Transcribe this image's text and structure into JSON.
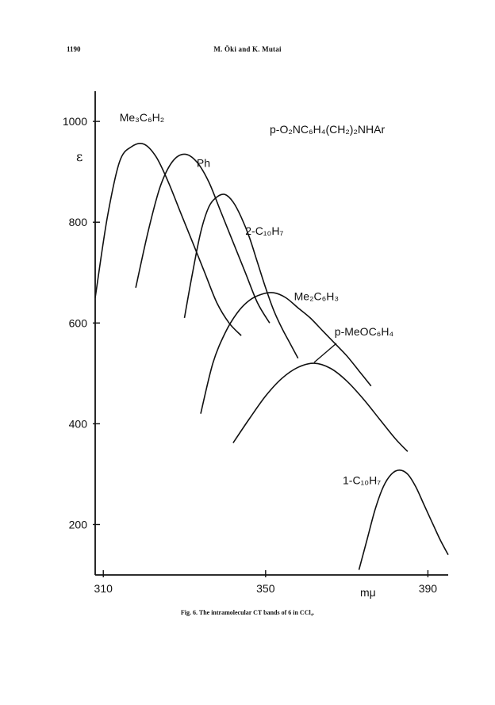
{
  "header": {
    "page_number": "1190",
    "authors": "M. Ōki and K. Mutai"
  },
  "caption": "Fig. 6. The intramolecular CT bands of 6 in CCl₄.",
  "chart_data": {
    "type": "line",
    "title": "p-O₂NC₆H₄(CH₂)₂NHAr",
    "xlabel": "mμ",
    "ylabel": "ε",
    "xlim": [
      308,
      395
    ],
    "ylim": [
      100,
      1060
    ],
    "xticks": [
      310,
      350,
      390
    ],
    "yticks": [
      200,
      400,
      600,
      800,
      1000
    ],
    "grid": false,
    "series": [
      {
        "name": "Me₃C₆H₂",
        "x": [
          308,
          311,
          314,
          317,
          320,
          323,
          326,
          329,
          332,
          335,
          338,
          341,
          344
        ],
        "y": [
          650,
          810,
          920,
          950,
          955,
          930,
          880,
          820,
          760,
          700,
          640,
          600,
          575
        ]
      },
      {
        "name": "Ph",
        "x": [
          318,
          321,
          324,
          327,
          330,
          333,
          336,
          339,
          342,
          345,
          348,
          351
        ],
        "y": [
          670,
          780,
          870,
          920,
          935,
          920,
          880,
          820,
          760,
          700,
          640,
          600
        ]
      },
      {
        "name": "2-C₁₀H₇",
        "x": [
          330,
          332,
          334,
          336,
          338,
          340,
          342,
          344,
          346,
          348,
          350,
          352,
          354,
          356,
          358
        ],
        "y": [
          610,
          700,
          780,
          830,
          850,
          855,
          840,
          810,
          770,
          720,
          670,
          625,
          590,
          560,
          530
        ]
      },
      {
        "name": "Me₂C₆H₃",
        "x": [
          334,
          337,
          340,
          343,
          346,
          349,
          352,
          355,
          358,
          361,
          364,
          367,
          370,
          373,
          376
        ],
        "y": [
          420,
          520,
          580,
          620,
          645,
          657,
          660,
          650,
          630,
          610,
          585,
          560,
          535,
          505,
          475
        ]
      },
      {
        "name": "p-MeOC₆H₄",
        "x": [
          342,
          346,
          350,
          354,
          358,
          362,
          366,
          370,
          374,
          378,
          382,
          385
        ],
        "y": [
          362,
          410,
          455,
          490,
          512,
          520,
          510,
          485,
          450,
          410,
          370,
          345
        ]
      },
      {
        "name": "1-C₁₀H₇",
        "x": [
          373,
          375,
          377,
          379,
          381,
          383,
          385,
          387,
          389,
          391,
          393,
          395
        ],
        "y": [
          110,
          170,
          230,
          275,
          300,
          308,
          300,
          275,
          240,
          205,
          170,
          140
        ]
      }
    ]
  }
}
